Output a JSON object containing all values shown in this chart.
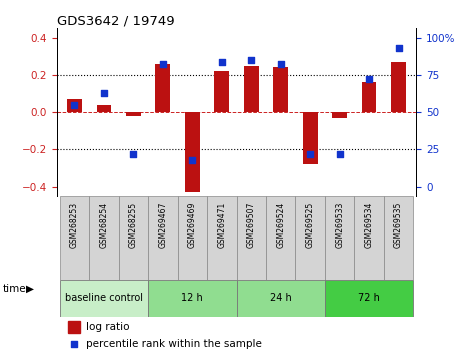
{
  "title": "GDS3642 / 19749",
  "samples": [
    "GSM268253",
    "GSM268254",
    "GSM268255",
    "GSM269467",
    "GSM269469",
    "GSM269471",
    "GSM269507",
    "GSM269524",
    "GSM269525",
    "GSM269533",
    "GSM269534",
    "GSM269535"
  ],
  "log_ratio": [
    0.07,
    0.04,
    -0.02,
    0.26,
    -0.43,
    0.22,
    0.25,
    0.24,
    -0.28,
    -0.03,
    0.16,
    0.27
  ],
  "percentile_rank": [
    55,
    63,
    22,
    82,
    18,
    84,
    85,
    82,
    22,
    22,
    72,
    93
  ],
  "groups": [
    {
      "label": "baseline control",
      "start": 0,
      "end": 3,
      "color": "#c8eec8"
    },
    {
      "label": "12 h",
      "start": 3,
      "end": 6,
      "color": "#90dd90"
    },
    {
      "label": "24 h",
      "start": 6,
      "end": 9,
      "color": "#90dd90"
    },
    {
      "label": "72 h",
      "start": 9,
      "end": 12,
      "color": "#44cc44"
    }
  ],
  "bar_color": "#bb1111",
  "dot_color": "#1133cc",
  "ylim_left": [
    -0.45,
    0.45
  ],
  "ymin": -0.4,
  "ymax": 0.4,
  "pct_min": 0,
  "pct_max": 100,
  "yticks_left": [
    -0.4,
    -0.2,
    0.0,
    0.2,
    0.4
  ],
  "yticks_right": [
    0,
    25,
    50,
    75,
    100
  ],
  "hlines_dotted": [
    0.2,
    -0.2
  ],
  "bar_width": 0.5
}
